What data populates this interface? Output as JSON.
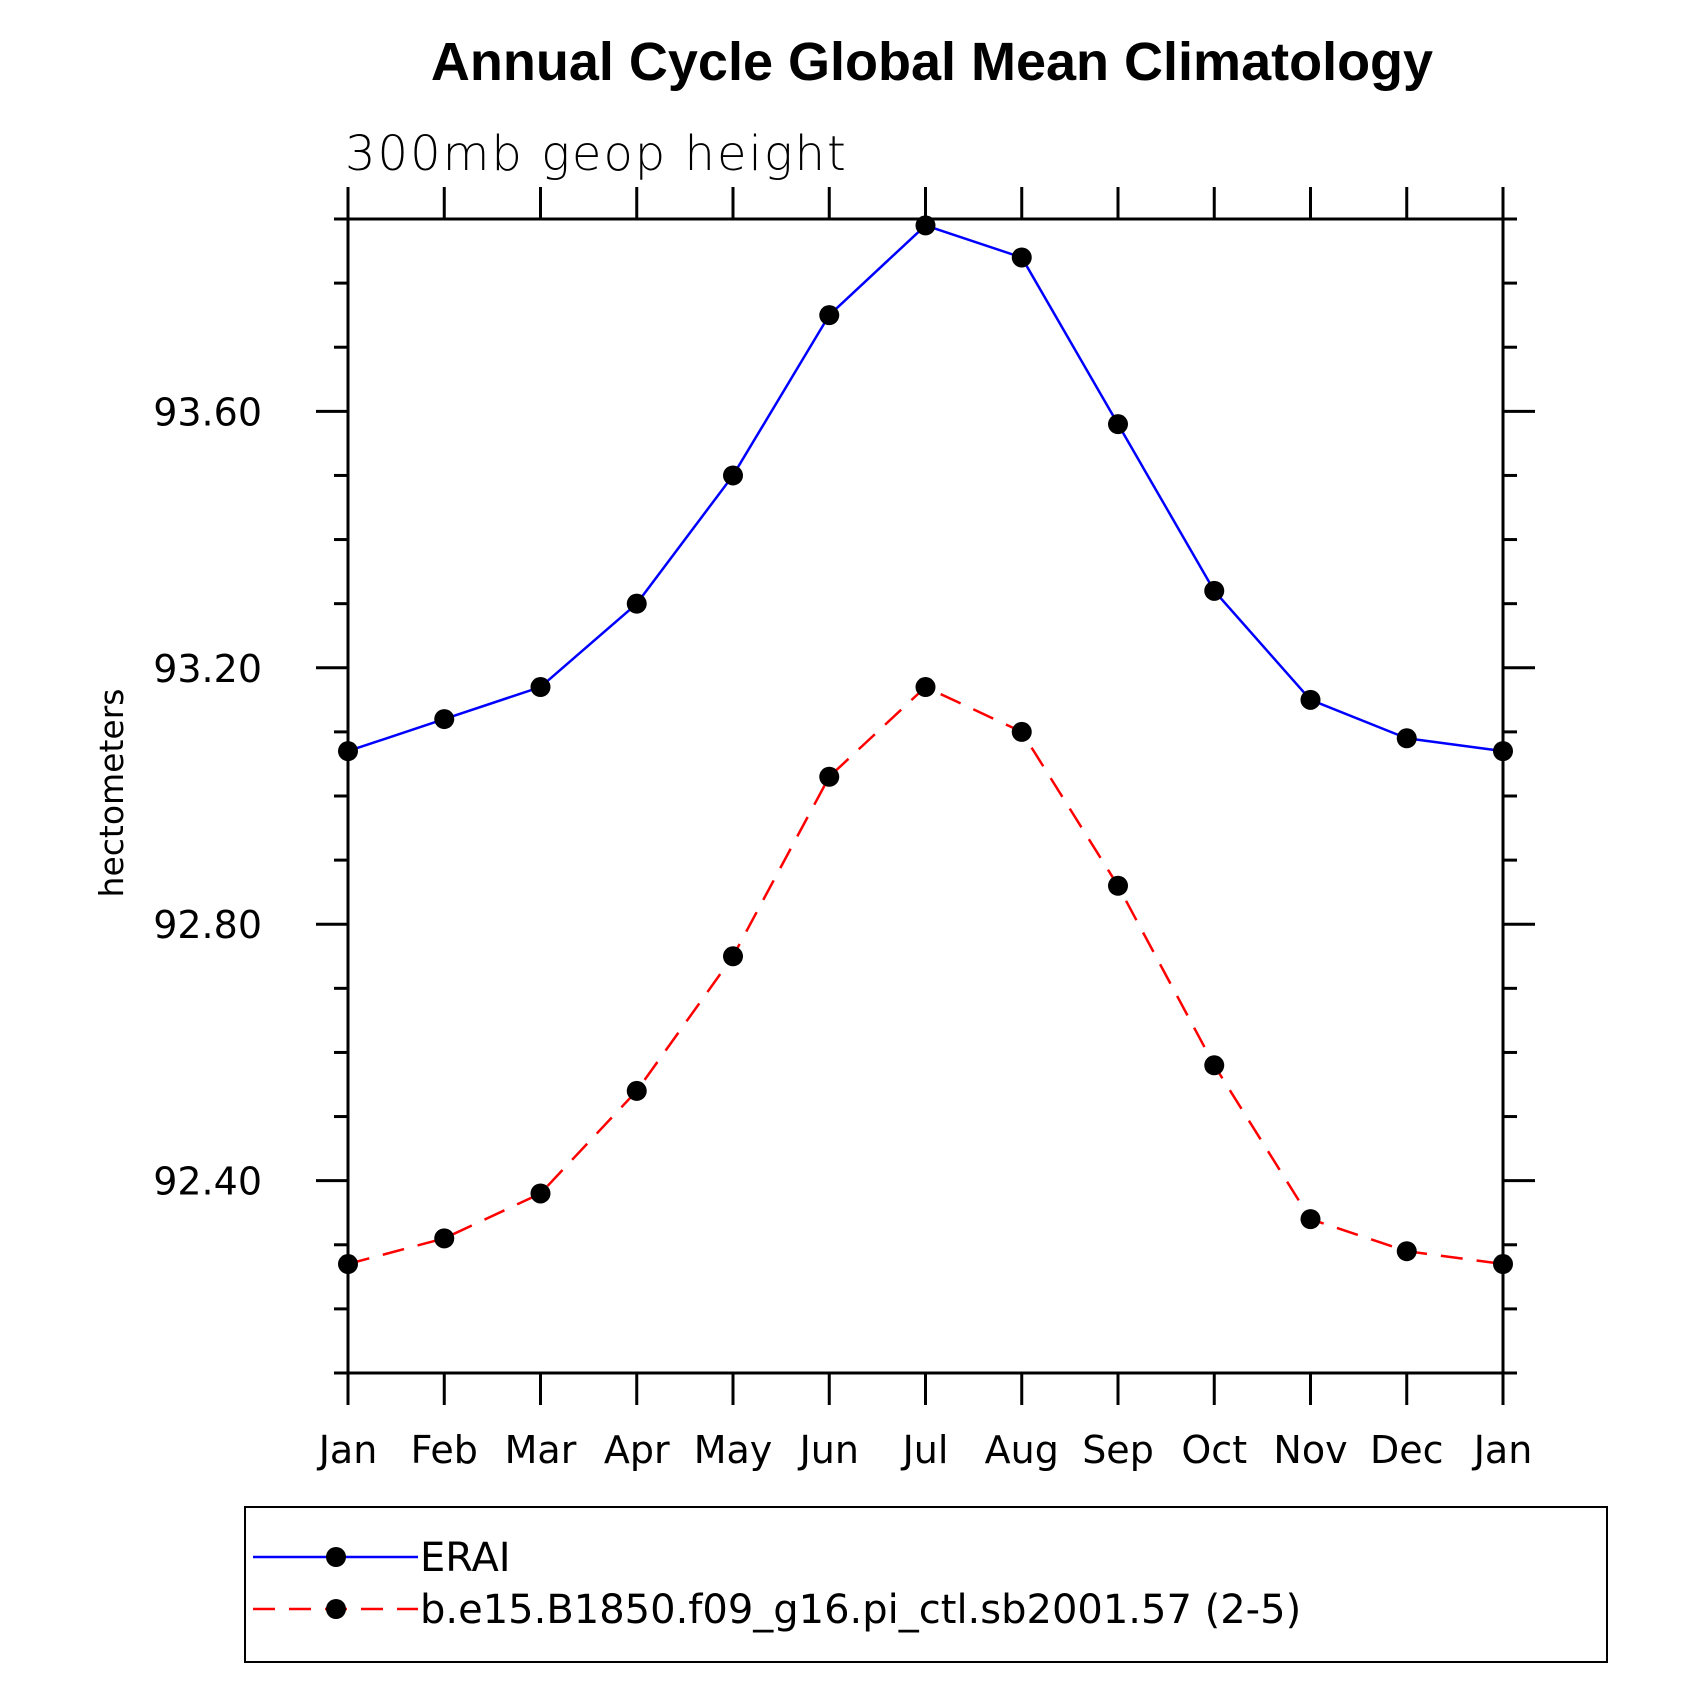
{
  "chart_data": {
    "type": "line",
    "title": "Annual Cycle Global Mean Climatology",
    "subtitle": "300mb geop height",
    "xlabel": "",
    "ylabel": "hectometers",
    "categories": [
      "Jan",
      "Feb",
      "Mar",
      "Apr",
      "May",
      "Jun",
      "Jul",
      "Aug",
      "Sep",
      "Oct",
      "Nov",
      "Dec",
      "Jan"
    ],
    "ylim": [
      92.1,
      93.9
    ],
    "yticks": [
      92.4,
      92.8,
      93.2,
      93.6
    ],
    "ytick_labels": [
      "92.40",
      "92.80",
      "93.20",
      "93.60"
    ],
    "grid": false,
    "legend_position": "bottom",
    "series": [
      {
        "name": "ERAI",
        "color": "#0000ff",
        "style": "solid",
        "values": [
          93.07,
          93.12,
          93.17,
          93.3,
          93.5,
          93.75,
          93.89,
          93.84,
          93.58,
          93.32,
          93.15,
          93.09,
          93.07
        ]
      },
      {
        "name": "b.e15.B1850.f09_g16.pi_ctl.sb2001.57 (2-5)",
        "color": "#ff0000",
        "style": "dashed",
        "values": [
          92.27,
          92.31,
          92.38,
          92.54,
          92.75,
          93.03,
          93.17,
          93.1,
          92.86,
          92.58,
          92.34,
          92.29,
          92.27
        ]
      }
    ]
  }
}
